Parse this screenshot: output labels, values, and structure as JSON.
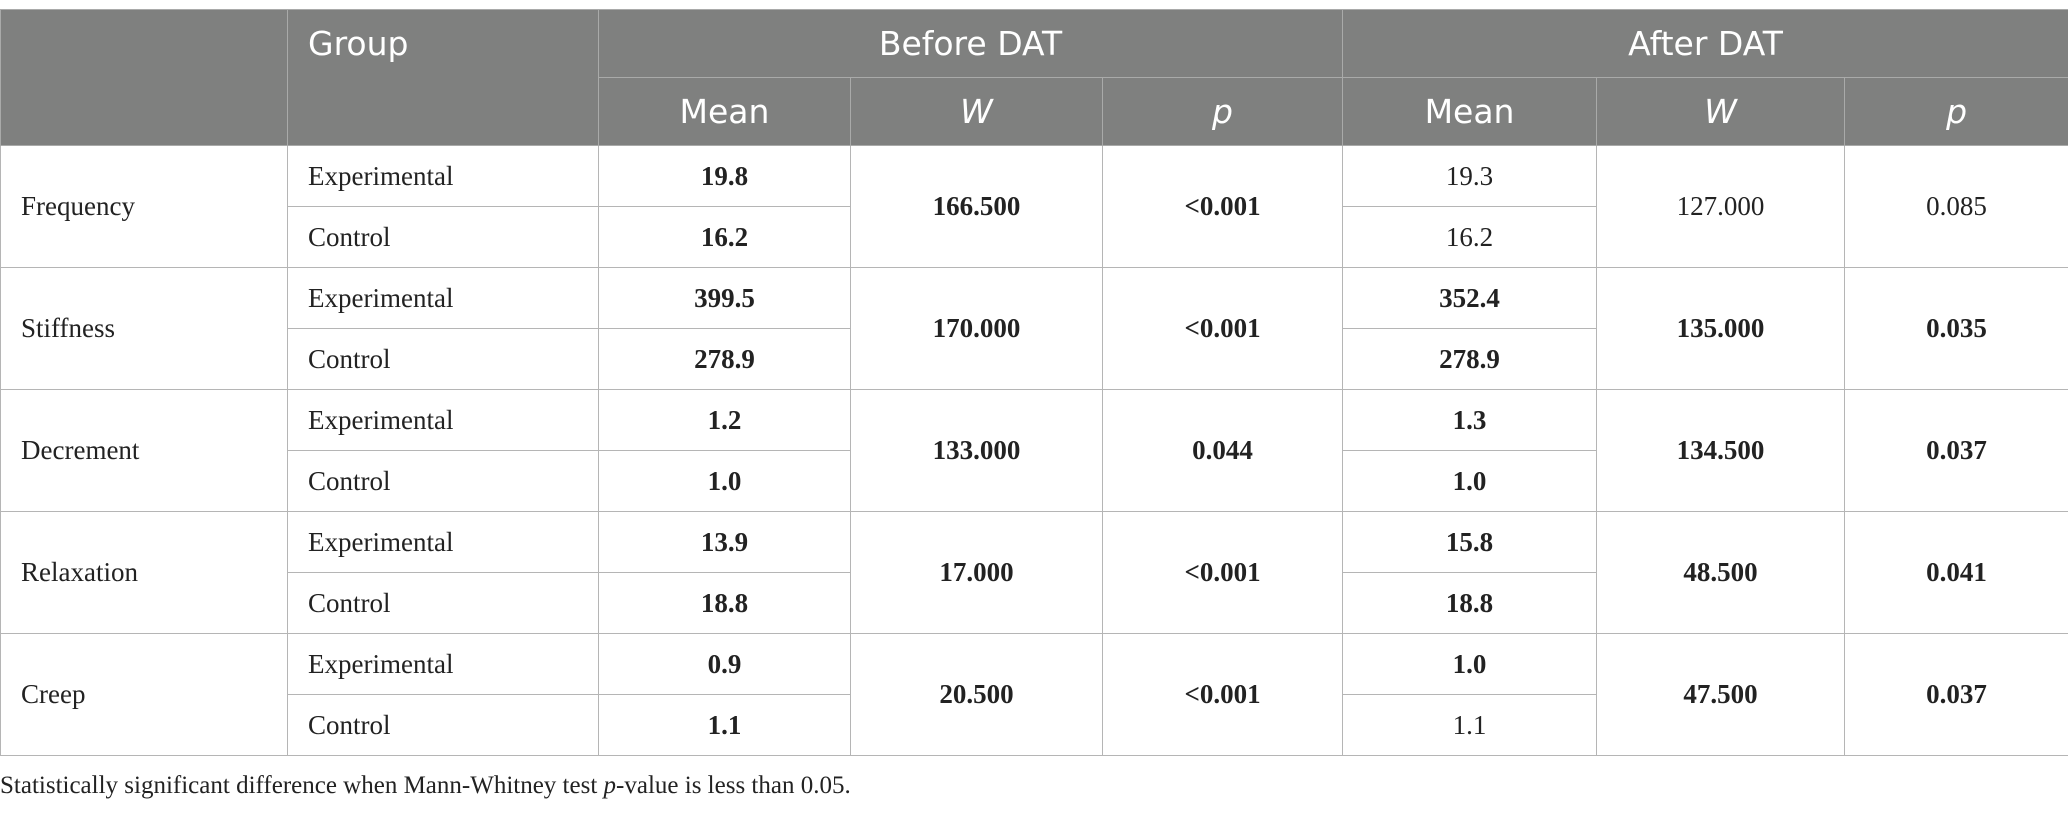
{
  "header": {
    "group": "Group",
    "before": "Before DAT",
    "after": "After DAT",
    "mean": "Mean",
    "w": "W",
    "p": "p"
  },
  "rows": [
    {
      "parameter": "Frequency",
      "groups": [
        "Experimental",
        "Control"
      ],
      "before_mean": [
        "19.8",
        "16.2"
      ],
      "before_w": "166.500",
      "before_p": "<0.001",
      "after_mean": [
        "19.3",
        "16.2"
      ],
      "after_w": "127.000",
      "after_p": "0.085"
    },
    {
      "parameter": "Stiffness",
      "groups": [
        "Experimental",
        "Control"
      ],
      "before_mean": [
        "399.5",
        "278.9"
      ],
      "before_w": "170.000",
      "before_p": "<0.001",
      "after_mean": [
        "352.4",
        "278.9"
      ],
      "after_w": "135.000",
      "after_p": "0.035"
    },
    {
      "parameter": "Decrement",
      "groups": [
        "Experimental",
        "Control"
      ],
      "before_mean": [
        "1.2",
        "1.0"
      ],
      "before_w": "133.000",
      "before_p": "0.044",
      "after_mean": [
        "1.3",
        "1.0"
      ],
      "after_w": "134.500",
      "after_p": "0.037"
    },
    {
      "parameter": "Relaxation",
      "groups": [
        "Experimental",
        "Control"
      ],
      "before_mean": [
        "13.9",
        "18.8"
      ],
      "before_w": "17.000",
      "before_p": "<0.001",
      "after_mean": [
        "15.8",
        "18.8"
      ],
      "after_w": "48.500",
      "after_p": "0.041"
    },
    {
      "parameter": "Creep",
      "groups": [
        "Experimental",
        "Control"
      ],
      "before_mean": [
        "0.9",
        "1.1"
      ],
      "before_w": "20.500",
      "before_p": "<0.001",
      "after_mean": [
        "1.0",
        "1.1"
      ],
      "after_w": "47.500",
      "after_p": "0.037"
    }
  ],
  "footnote": {
    "before": "Statistically significant difference when Mann-Whitney test ",
    "italic": "p",
    "after": "-value is less than 0.05."
  }
}
